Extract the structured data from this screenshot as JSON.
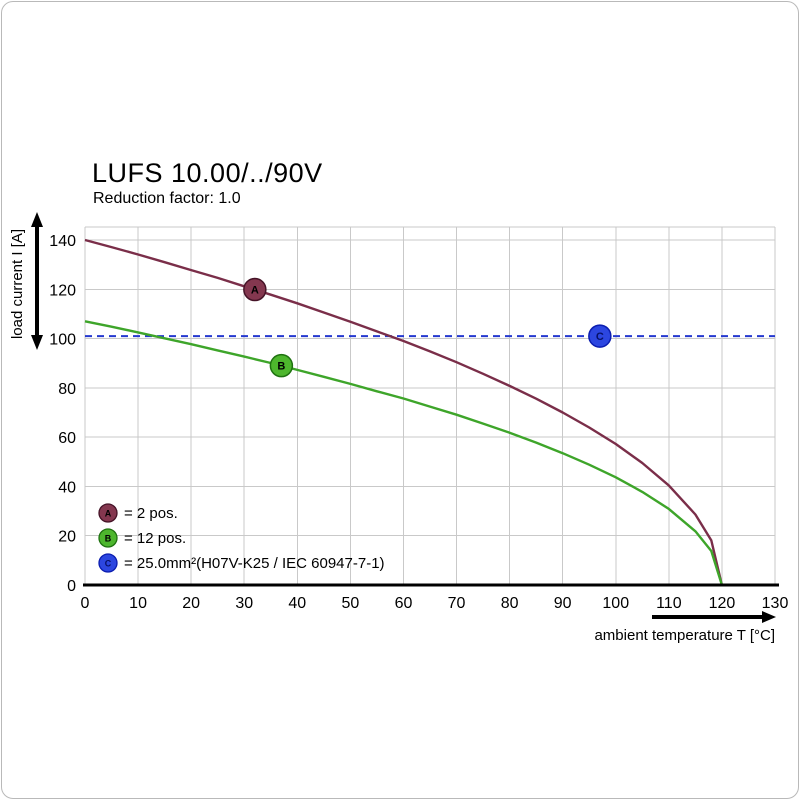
{
  "header": {
    "title": "LUFS 10.00/../90V",
    "subtitle": "Reduction factor: 1.0"
  },
  "chart_data": {
    "type": "line",
    "title": "LUFS 10.00/../90V",
    "subtitle": "Reduction factor: 1.0",
    "xlabel": "ambient temperature T [°C]",
    "ylabel": "load current I [A]",
    "xlim": [
      0,
      130
    ],
    "ylim": [
      0,
      140
    ],
    "xticks": [
      0,
      10,
      20,
      30,
      40,
      50,
      60,
      70,
      80,
      90,
      100,
      110,
      120,
      130
    ],
    "yticks": [
      0,
      20,
      40,
      60,
      80,
      100,
      120,
      140
    ],
    "grid": true,
    "grid_color": "#c9c9c9",
    "axis_color": "#000000",
    "legend_position": "lower-left-inside",
    "series": [
      {
        "name": "A",
        "label": "= 2 pos.",
        "kind": "curve",
        "color": "#7a2e49",
        "marker_fill": "#84374f",
        "marker_stroke": "#451327",
        "letter_color": "#000000",
        "points": [
          [
            0,
            140
          ],
          [
            5,
            137.1
          ],
          [
            10,
            134.1
          ],
          [
            15,
            131.0
          ],
          [
            20,
            127.8
          ],
          [
            25,
            124.6
          ],
          [
            30,
            121.2
          ],
          [
            35,
            117.8
          ],
          [
            40,
            114.3
          ],
          [
            45,
            110.6
          ],
          [
            50,
            106.8
          ],
          [
            55,
            102.9
          ],
          [
            60,
            99.0
          ],
          [
            65,
            94.8
          ],
          [
            70,
            90.4
          ],
          [
            75,
            85.7
          ],
          [
            80,
            80.8
          ],
          [
            85,
            75.6
          ],
          [
            90,
            70.0
          ],
          [
            95,
            63.9
          ],
          [
            100,
            57.2
          ],
          [
            105,
            49.5
          ],
          [
            110,
            40.4
          ],
          [
            115,
            28.6
          ],
          [
            118,
            18.1
          ],
          [
            120,
            0
          ]
        ]
      },
      {
        "name": "B",
        "label": "= 12 pos.",
        "kind": "curve",
        "color": "#3ea52a",
        "marker_fill": "#4db62d",
        "marker_stroke": "#1f7210",
        "letter_color": "#000000",
        "points": [
          [
            0,
            107
          ],
          [
            5,
            104.8
          ],
          [
            10,
            102.5
          ],
          [
            15,
            100.1
          ],
          [
            20,
            97.7
          ],
          [
            25,
            95.2
          ],
          [
            30,
            92.7
          ],
          [
            35,
            90.1
          ],
          [
            40,
            87.3
          ],
          [
            45,
            84.5
          ],
          [
            50,
            81.6
          ],
          [
            55,
            78.6
          ],
          [
            60,
            75.7
          ],
          [
            65,
            72.4
          ],
          [
            70,
            69.1
          ],
          [
            75,
            65.5
          ],
          [
            80,
            61.8
          ],
          [
            85,
            57.8
          ],
          [
            90,
            53.5
          ],
          [
            95,
            48.8
          ],
          [
            100,
            43.7
          ],
          [
            105,
            37.8
          ],
          [
            110,
            30.9
          ],
          [
            115,
            21.8
          ],
          [
            118,
            13.8
          ],
          [
            120,
            0
          ]
        ]
      },
      {
        "name": "C",
        "label": "= 25.0mm²(H07V-K25 / IEC 60947-7-1)",
        "kind": "hline",
        "y": 101,
        "color": "#2438cf",
        "dash": "7 5",
        "marker_fill": "#2c46e0",
        "marker_stroke": "#0b1db0",
        "letter_color": "#061067"
      }
    ],
    "markers": [
      {
        "series": "A",
        "x": 32,
        "y": 119.9
      },
      {
        "series": "B",
        "x": 37,
        "y": 89.0
      },
      {
        "series": "C",
        "x": 97,
        "y": 101
      }
    ]
  }
}
